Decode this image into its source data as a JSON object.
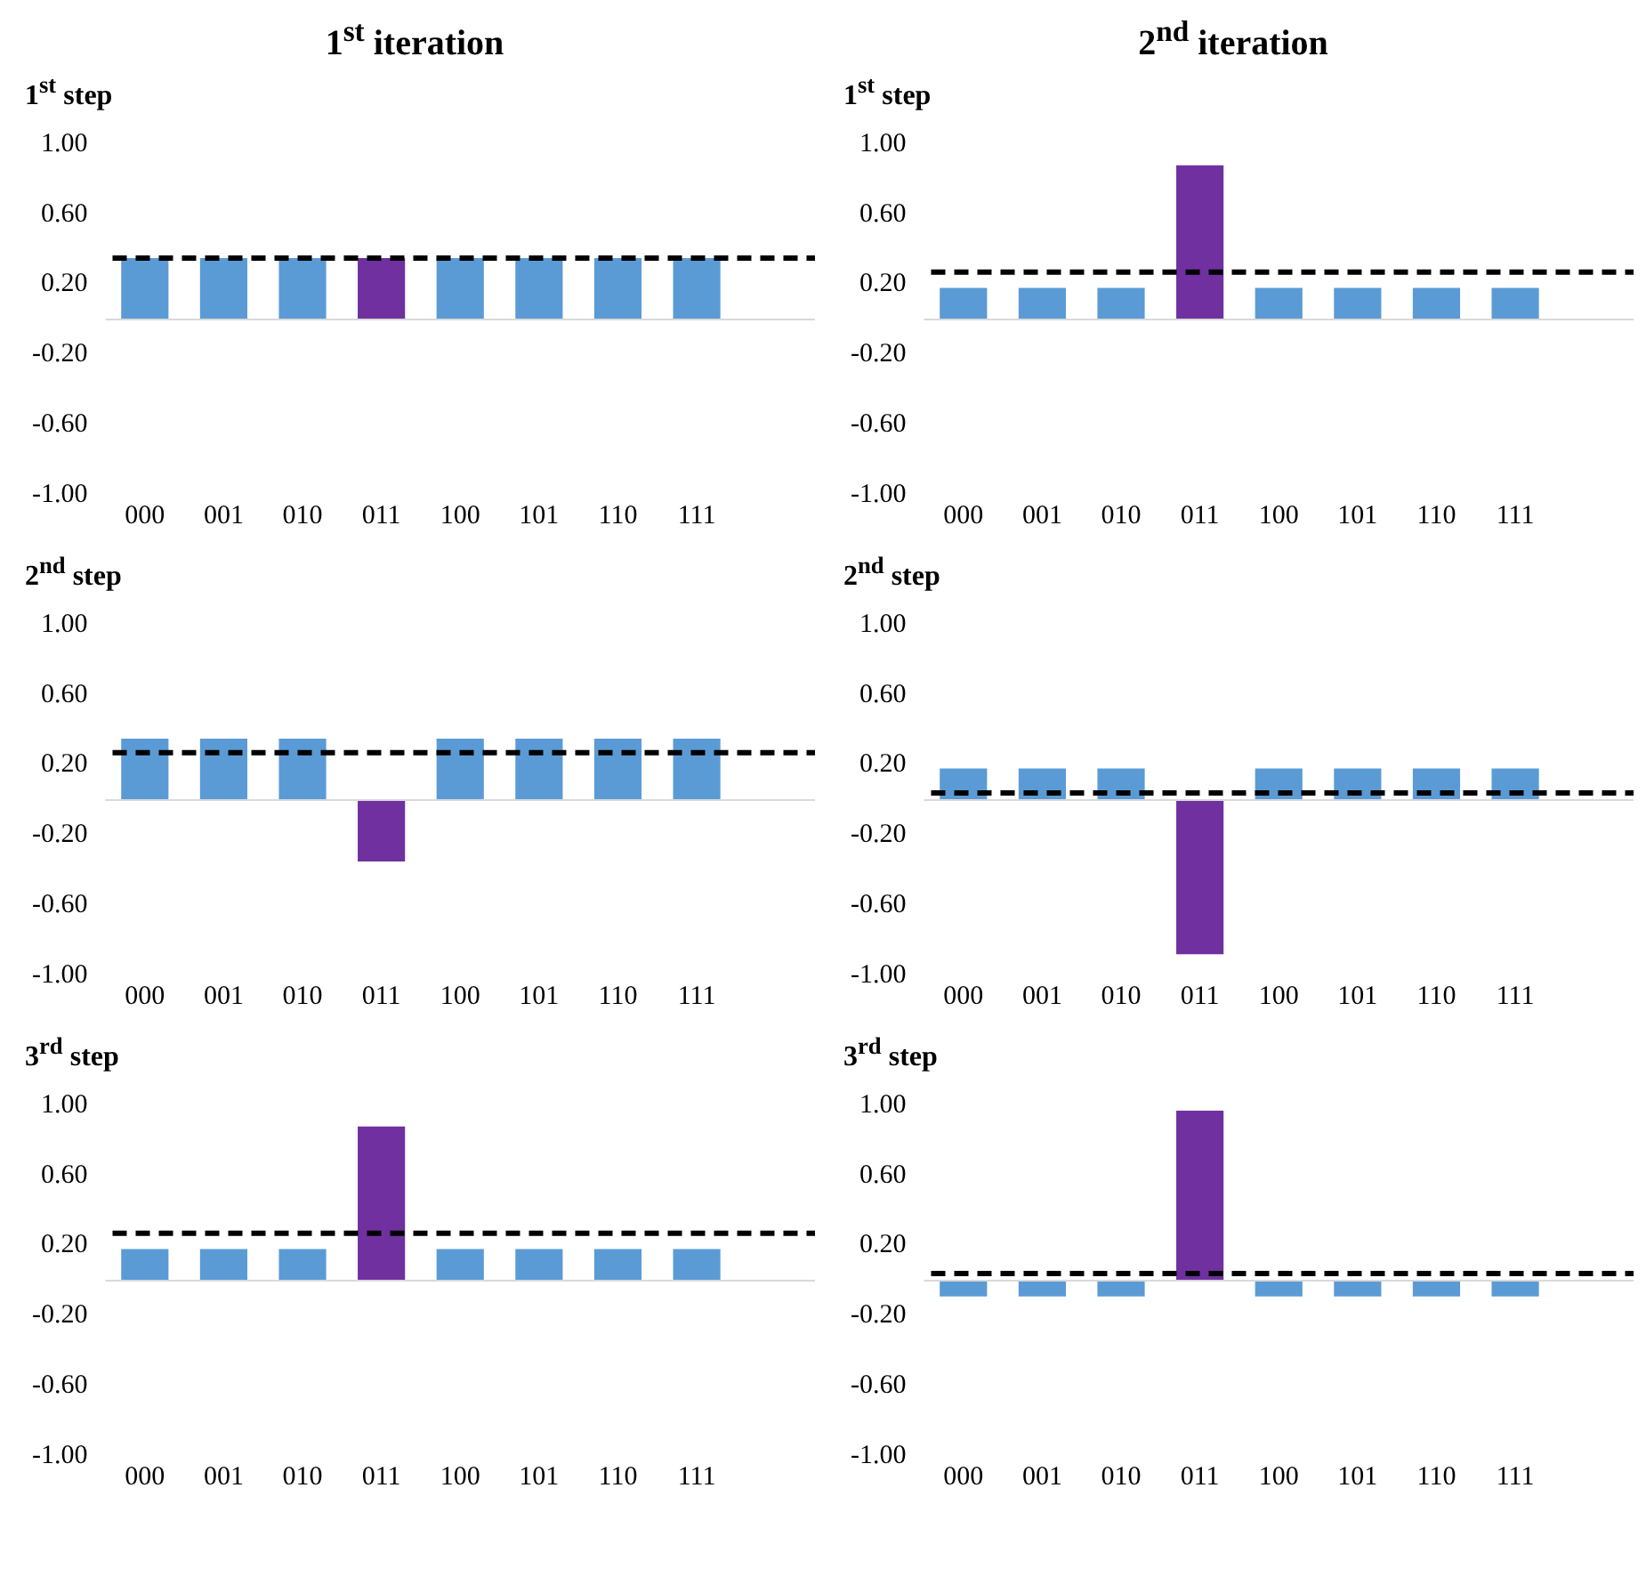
{
  "chart_data": [
    {
      "type": "bar",
      "title": "1$^{st}$ iteration",
      "subtitle": "1$^{st}$ step",
      "categories": [
        "000",
        "001",
        "010",
        "011",
        "100",
        "101",
        "110",
        "111"
      ],
      "values": [
        0.35,
        0.35,
        0.35,
        0.35,
        0.35,
        0.35,
        0.35,
        0.35
      ],
      "colors": [
        "#5b9bd5",
        "#5b9bd5",
        "#5b9bd5",
        "#7030a0",
        "#5b9bd5",
        "#5b9bd5",
        "#5b9bd5",
        "#5b9bd5"
      ],
      "ylim": [
        -1,
        1
      ],
      "yticks": [
        {
          "value": -1,
          "label": "-1.00"
        },
        {
          "value": -0.6,
          "label": "-0.60"
        },
        {
          "value": -0.2,
          "label": "-0.20"
        },
        {
          "value": 0.2,
          "label": "0.20"
        },
        {
          "value": 0.6,
          "label": "0.60"
        },
        {
          "value": 1,
          "label": "1.00"
        }
      ],
      "ref_lines": [
        {
          "axis": "y",
          "value": 0.35,
          "color": "#000000",
          "line_style": "dashed"
        }
      ],
      "grid": false
    },
    {
      "type": "bar",
      "title": "2$^{nd}$ iteration",
      "subtitle": "1$^{st}$ step",
      "categories": [
        "000",
        "001",
        "010",
        "011",
        "100",
        "101",
        "110",
        "111"
      ],
      "values": [
        0.18,
        0.18,
        0.18,
        0.88,
        0.18,
        0.18,
        0.18,
        0.18
      ],
      "colors": [
        "#5b9bd5",
        "#5b9bd5",
        "#5b9bd5",
        "#7030a0",
        "#5b9bd5",
        "#5b9bd5",
        "#5b9bd5",
        "#5b9bd5"
      ],
      "ylim": [
        -1,
        1
      ],
      "yticks": [
        {
          "value": -1,
          "label": "-1.00"
        },
        {
          "value": -0.6,
          "label": "-0.60"
        },
        {
          "value": -0.2,
          "label": "-0.20"
        },
        {
          "value": 0.2,
          "label": "0.20"
        },
        {
          "value": 0.6,
          "label": "0.60"
        },
        {
          "value": 1,
          "label": "1.00"
        }
      ],
      "ref_lines": [
        {
          "axis": "y",
          "value": 0.27,
          "color": "#000000",
          "line_style": "dashed"
        }
      ],
      "grid": false
    },
    {
      "type": "bar",
      "subtitle": "2$^{nd}$ step",
      "categories": [
        "000",
        "001",
        "010",
        "011",
        "100",
        "101",
        "110",
        "111"
      ],
      "values": [
        0.35,
        0.35,
        0.35,
        -0.35,
        0.35,
        0.35,
        0.35,
        0.35
      ],
      "colors": [
        "#5b9bd5",
        "#5b9bd5",
        "#5b9bd5",
        "#7030a0",
        "#5b9bd5",
        "#5b9bd5",
        "#5b9bd5",
        "#5b9bd5"
      ],
      "ylim": [
        -1,
        1
      ],
      "yticks": [
        {
          "value": -1,
          "label": "-1.00"
        },
        {
          "value": -0.6,
          "label": "-0.60"
        },
        {
          "value": -0.2,
          "label": "-0.20"
        },
        {
          "value": 0.2,
          "label": "0.20"
        },
        {
          "value": 0.6,
          "label": "0.60"
        },
        {
          "value": 1,
          "label": "1.00"
        }
      ],
      "ref_lines": [
        {
          "axis": "y",
          "value": 0.27,
          "color": "#000000",
          "line_style": "dashed"
        }
      ],
      "grid": false
    },
    {
      "type": "bar",
      "subtitle": "2$^{nd}$ step",
      "categories": [
        "000",
        "001",
        "010",
        "011",
        "100",
        "101",
        "110",
        "111"
      ],
      "values": [
        0.18,
        0.18,
        0.18,
        -0.88,
        0.18,
        0.18,
        0.18,
        0.18
      ],
      "colors": [
        "#5b9bd5",
        "#5b9bd5",
        "#5b9bd5",
        "#7030a0",
        "#5b9bd5",
        "#5b9bd5",
        "#5b9bd5",
        "#5b9bd5"
      ],
      "ylim": [
        -1,
        1
      ],
      "yticks": [
        {
          "value": -1,
          "label": "-1.00"
        },
        {
          "value": -0.6,
          "label": "-0.60"
        },
        {
          "value": -0.2,
          "label": "-0.20"
        },
        {
          "value": 0.2,
          "label": "0.20"
        },
        {
          "value": 0.6,
          "label": "0.60"
        },
        {
          "value": 1,
          "label": "1.00"
        }
      ],
      "ref_lines": [
        {
          "axis": "y",
          "value": 0.04,
          "color": "#000000",
          "line_style": "dashed"
        }
      ],
      "grid": false
    },
    {
      "type": "bar",
      "subtitle": "3$^{rd}$ step",
      "categories": [
        "000",
        "001",
        "010",
        "011",
        "100",
        "101",
        "110",
        "111"
      ],
      "values": [
        0.18,
        0.18,
        0.18,
        0.88,
        0.18,
        0.18,
        0.18,
        0.18
      ],
      "colors": [
        "#5b9bd5",
        "#5b9bd5",
        "#5b9bd5",
        "#7030a0",
        "#5b9bd5",
        "#5b9bd5",
        "#5b9bd5",
        "#5b9bd5"
      ],
      "ylim": [
        -1,
        1
      ],
      "yticks": [
        {
          "value": -1,
          "label": "-1.00"
        },
        {
          "value": -0.6,
          "label": "-0.60"
        },
        {
          "value": -0.2,
          "label": "-0.20"
        },
        {
          "value": 0.2,
          "label": "0.20"
        },
        {
          "value": 0.6,
          "label": "0.60"
        },
        {
          "value": 1,
          "label": "1.00"
        }
      ],
      "ref_lines": [
        {
          "axis": "y",
          "value": 0.27,
          "color": "#000000",
          "line_style": "dashed"
        }
      ],
      "grid": false
    },
    {
      "type": "bar",
      "subtitle": "3$^{rd}$ step",
      "categories": [
        "000",
        "001",
        "010",
        "011",
        "100",
        "101",
        "110",
        "111"
      ],
      "values": [
        -0.09,
        -0.09,
        -0.09,
        0.97,
        -0.09,
        -0.09,
        -0.09,
        -0.09
      ],
      "colors": [
        "#5b9bd5",
        "#5b9bd5",
        "#5b9bd5",
        "#7030a0",
        "#5b9bd5",
        "#5b9bd5",
        "#5b9bd5",
        "#5b9bd5"
      ],
      "ylim": [
        -1,
        1
      ],
      "yticks": [
        {
          "value": -1,
          "label": "-1.00"
        },
        {
          "value": -0.6,
          "label": "-0.60"
        },
        {
          "value": -0.2,
          "label": "-0.20"
        },
        {
          "value": 0.2,
          "label": "0.20"
        },
        {
          "value": 0.6,
          "label": "0.60"
        },
        {
          "value": 1,
          "label": "1.00"
        }
      ],
      "ref_lines": [
        {
          "axis": "y",
          "value": 0.04,
          "color": "#000000",
          "line_style": "dashed"
        }
      ],
      "grid": false
    }
  ]
}
